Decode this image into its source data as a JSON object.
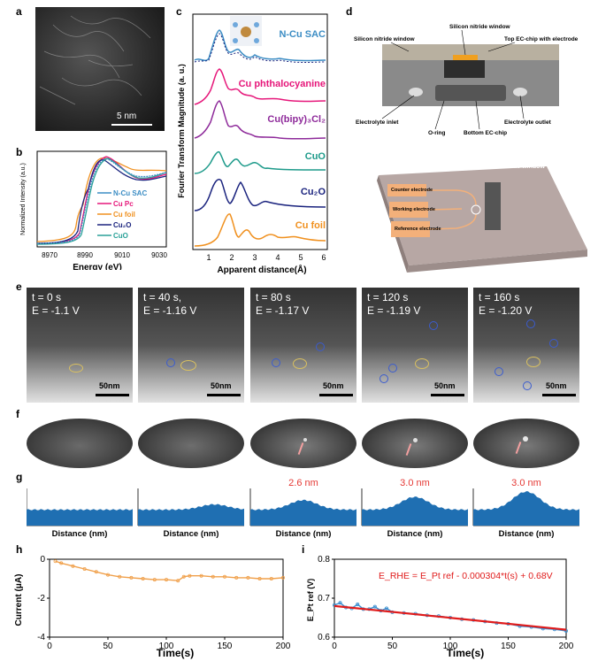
{
  "panels": {
    "a": "a",
    "b": "b",
    "c": "c",
    "d": "d",
    "e": "e",
    "f": "f",
    "g": "g",
    "h": "h",
    "i": "i"
  },
  "panel_a": {
    "scalebar": "5 nm"
  },
  "panel_b": {
    "ylabel": "Normalized Intensity (a.u.)",
    "xlabel": "Energy (eV)",
    "xticks": [
      "8970",
      "8990",
      "9010",
      "9030"
    ],
    "legend": [
      {
        "name": "N-Cu SAC",
        "color": "#3c8dc4"
      },
      {
        "name": "Cu Pc",
        "color": "#e6177a"
      },
      {
        "name": "Cu foil",
        "color": "#f0901e"
      },
      {
        "name": "Cu₂O",
        "color": "#1a237e"
      },
      {
        "name": "CuO",
        "color": "#2aa198"
      }
    ]
  },
  "panel_c": {
    "ylabel": "Fourier Transform Magnitude (a. u.)",
    "xlabel": "Apparent distance(Å)",
    "xticks": [
      "1",
      "2",
      "3",
      "4",
      "5",
      "6"
    ],
    "series": [
      {
        "name": "N-Cu SAC",
        "color": "#3c8dc4"
      },
      {
        "name": "Cu phthalocyanine",
        "color": "#e6177a"
      },
      {
        "name": "Cu(bipy)₃Cl₂",
        "color": "#8e2a9a"
      },
      {
        "name": "CuO",
        "color": "#1d9a8a"
      },
      {
        "name": "Cu₂O",
        "color": "#1a237e"
      },
      {
        "name": "Cu foil",
        "color": "#f0901e"
      }
    ]
  },
  "panel_d": {
    "labels": {
      "sin_window_left": "Silicon nitride window",
      "sin_window_top": "Silicon nitride window",
      "top_chip": "Top EC-chip with electrode",
      "inlet": "Electrolyte inlet",
      "oring": "O-ring",
      "bottom_chip": "Bottom EC-chip",
      "outlet": "Electrolyte outlet",
      "counter": "Counter electrode",
      "working": "Working electrode",
      "reference": "Reference electrode",
      "sin_window_chip": "Silicon nitride window"
    }
  },
  "panel_e": {
    "frames": [
      {
        "t": "t = 0 s",
        "E": "E = -1.1 V",
        "scale": "50nm"
      },
      {
        "t": "t = 40 s,",
        "E": "E = -1.16 V",
        "scale": "50nm"
      },
      {
        "t": "t = 80 s",
        "E": "E = -1.17 V",
        "scale": "50nm"
      },
      {
        "t": "t = 120 s",
        "E": "E = -1.19 V",
        "scale": "50nm"
      },
      {
        "t": "t = 160 s",
        "E": "E = -1.20 V",
        "scale": "50nm"
      }
    ]
  },
  "panel_g": {
    "xlabel": "Distance (nm)",
    "heights": [
      "",
      "",
      "2.6 nm",
      "3.0 nm",
      "3.0 nm"
    ],
    "bump_level": [
      0.0,
      0.25,
      0.45,
      0.6,
      0.85
    ]
  },
  "chart_data": [
    {
      "type": "line",
      "id": "h",
      "xlabel": "Time(s)",
      "ylabel": "Current (μA)",
      "xlim": [
        0,
        200
      ],
      "ylim": [
        -4,
        0
      ],
      "xticks": [
        0,
        50,
        100,
        150,
        200
      ],
      "yticks": [
        0,
        -2,
        -4
      ],
      "series": [
        {
          "color": "#f0a04b",
          "x": [
            5,
            10,
            20,
            30,
            40,
            50,
            60,
            70,
            80,
            90,
            100,
            110,
            115,
            120,
            130,
            140,
            150,
            160,
            170,
            180,
            190,
            200
          ],
          "y": [
            -0.1,
            -0.2,
            -0.35,
            -0.5,
            -0.65,
            -0.8,
            -0.9,
            -0.95,
            -1.0,
            -1.05,
            -1.05,
            -1.1,
            -0.9,
            -0.85,
            -0.85,
            -0.9,
            -0.9,
            -0.95,
            -0.95,
            -1.0,
            -1.0,
            -0.95
          ]
        }
      ]
    },
    {
      "type": "line",
      "id": "i",
      "xlabel": "Time(s)",
      "ylabel": "E_Pt ref (V)",
      "xlim": [
        0,
        200
      ],
      "ylim": [
        0.6,
        0.8
      ],
      "xticks": [
        0,
        50,
        100,
        150,
        200
      ],
      "yticks": [
        0.6,
        0.7,
        0.8
      ],
      "equation": "E_RHE = E_Pt ref - 0.000304*t(s) + 0.68V",
      "series": [
        {
          "name": "measured",
          "color": "#3a8fd0",
          "x": [
            0,
            5,
            10,
            15,
            20,
            25,
            30,
            35,
            40,
            45,
            50,
            60,
            70,
            80,
            90,
            100,
            110,
            120,
            130,
            140,
            150,
            160,
            170,
            180,
            190,
            200
          ],
          "y": [
            0.682,
            0.688,
            0.676,
            0.674,
            0.684,
            0.672,
            0.672,
            0.678,
            0.668,
            0.674,
            0.664,
            0.662,
            0.66,
            0.656,
            0.654,
            0.65,
            0.646,
            0.644,
            0.64,
            0.636,
            0.634,
            0.628,
            0.626,
            0.622,
            0.62,
            0.616
          ]
        },
        {
          "name": "fit",
          "color": "#e01b1b",
          "x": [
            0,
            200
          ],
          "y": [
            0.68,
            0.6192
          ]
        }
      ]
    }
  ]
}
